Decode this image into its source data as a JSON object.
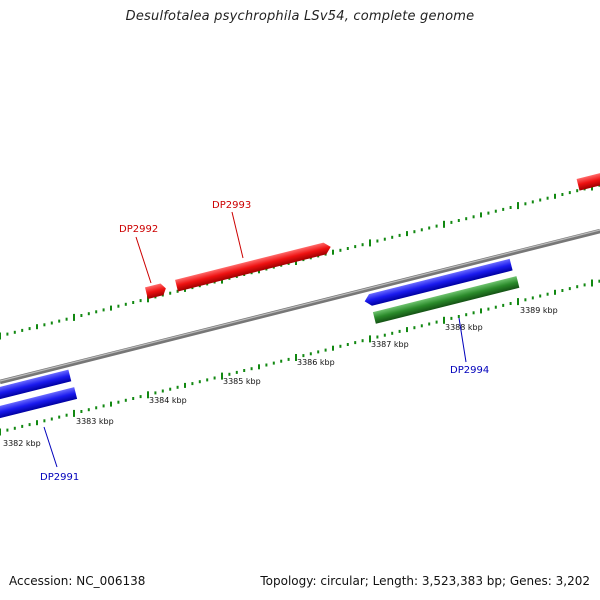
{
  "title": "Desulfotalea psychrophila LSv54, complete genome",
  "footer": {
    "accession": "Accession: NC_006138",
    "summary": "Topology: circular; Length: 3,523,383 bp; Genes: 3,202"
  },
  "colors": {
    "forward_gene": "#ee1111",
    "reverse_gene": "#1a1aee",
    "rna_gene": "#228822",
    "ticks": "#118811",
    "backbone": "#888888",
    "label_forward": "#cc0000",
    "label_reverse": "#0000bb"
  },
  "scale_ticks": [
    {
      "label": "3382 kbp"
    },
    {
      "label": "3383 kbp"
    },
    {
      "label": "3384 kbp"
    },
    {
      "label": "3385 kbp"
    },
    {
      "label": "3386 kbp"
    },
    {
      "label": "3387 kbp"
    },
    {
      "label": "3388 kbp"
    },
    {
      "label": "3389 kbp"
    }
  ],
  "gene_labels": [
    {
      "id": "DP2991",
      "strand": "reverse"
    },
    {
      "id": "DP2992",
      "strand": "forward"
    },
    {
      "id": "DP2993",
      "strand": "forward"
    },
    {
      "id": "DP2994",
      "strand": "reverse"
    }
  ]
}
